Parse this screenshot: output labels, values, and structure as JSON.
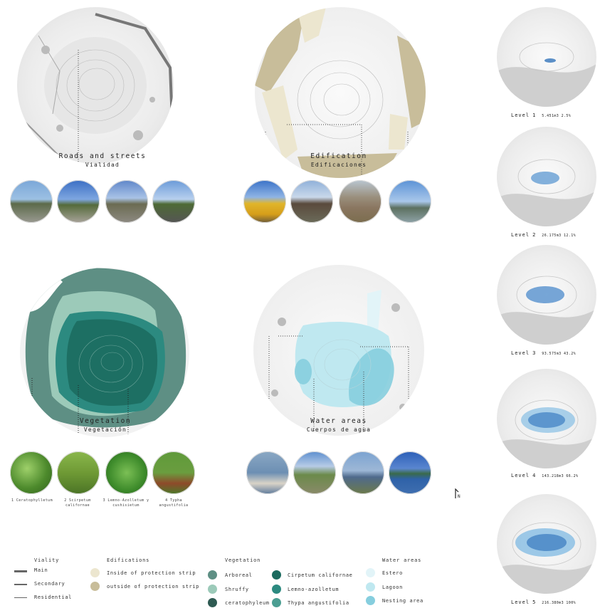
{
  "maps": {
    "roads": {
      "title": "Roads and streets",
      "subtitle": "Vialidad"
    },
    "edification": {
      "title": "Edification",
      "subtitle": "Edificaciones"
    },
    "vegetation": {
      "title": "Vegetation",
      "subtitle": "Vegetación"
    },
    "water": {
      "title": "Water areas",
      "subtitle": "Cuerpos de agua"
    }
  },
  "vegetation_captions": [
    "1 Ceratophylletum",
    "2 Scirpetum californae",
    "3 Lemno-Azolletum y cushisietum",
    "4 Typha angustifolia"
  ],
  "levels": [
    {
      "label": "Level",
      "num": "1",
      "stat": "5.451m3   2.5%"
    },
    {
      "label": "Level",
      "num": "2",
      "stat": "26.175m3   12.1%"
    },
    {
      "label": "Level",
      "num": "3",
      "stat": "93.575m3   43.2%"
    },
    {
      "label": "Level",
      "num": "4",
      "stat": "143.218m3   66.2%"
    },
    {
      "label": "Level",
      "num": "5",
      "stat": "216.380m3   100%"
    }
  ],
  "north": "N",
  "legend": {
    "viality": {
      "title": "Viality",
      "items": [
        "Main",
        "Secondary",
        "Residential"
      ]
    },
    "edifications": {
      "title": "Edifications",
      "items": [
        "Inside of protection strip",
        "outside of protection strip"
      ],
      "colors": [
        "#ece6cf",
        "#c8bd9a"
      ]
    },
    "vegetation": {
      "title": "Vegetation",
      "items": [
        "Arboreal",
        "Shruffy",
        "ceratophyleum",
        "Cirpetum californae",
        "Lemno-azolletum",
        "Thypa angustifolia"
      ],
      "colors": [
        "#5e8f84",
        "#9ccab9",
        "#2e5a52",
        "#1b6a5e",
        "#2c8a80",
        "#4b9e92"
      ]
    },
    "water": {
      "title": "Water areas",
      "items": [
        "Estero",
        "Lagoon",
        "Nesting area"
      ],
      "colors": [
        "#e2f4f8",
        "#bfe8f0",
        "#86cede"
      ]
    }
  }
}
